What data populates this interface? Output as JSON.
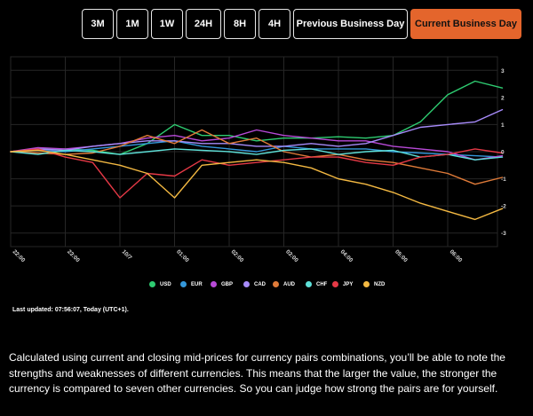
{
  "timeframe_buttons": [
    {
      "label": "3M",
      "active": false
    },
    {
      "label": "1M",
      "active": false
    },
    {
      "label": "1W",
      "active": false
    },
    {
      "label": "24H",
      "active": false
    },
    {
      "label": "8H",
      "active": false
    },
    {
      "label": "4H",
      "active": false
    },
    {
      "label": "Previous Business Day",
      "active": false
    },
    {
      "label": "Current Business Day",
      "active": true
    }
  ],
  "colors": {
    "accent": "#e4652c",
    "background": "#000000",
    "grid": "#262626"
  },
  "chart_data": {
    "type": "line",
    "title": "",
    "xlabel": "",
    "ylabel": "",
    "x_tick_labels": [
      "22:00",
      "23:00",
      "10/7",
      "01:00",
      "02:00",
      "03:00",
      "04:00",
      "05:00",
      "06:00"
    ],
    "yticks": [
      3,
      2,
      1,
      0,
      -1,
      -2,
      -3
    ],
    "ylim": [
      -3.5,
      3.5
    ],
    "x": [
      0,
      0.5,
      1,
      1.5,
      2,
      2.5,
      3,
      3.5,
      4,
      4.5,
      5,
      5.5,
      6,
      6.5,
      7,
      7.5,
      8,
      8.5,
      9
    ],
    "series": [
      {
        "name": "USD",
        "color": "#2ecc71",
        "values": [
          0,
          0.1,
          0.1,
          0.05,
          -0.1,
          0.3,
          1.0,
          0.6,
          0.6,
          0.4,
          0.5,
          0.5,
          0.55,
          0.5,
          0.6,
          1.1,
          2.1,
          2.6,
          2.35
        ]
      },
      {
        "name": "EUR",
        "color": "#3498db",
        "values": [
          0,
          0.05,
          0.0,
          0.1,
          0.2,
          0.3,
          0.4,
          0.2,
          0.1,
          0.0,
          0.2,
          0.1,
          0.1,
          0.1,
          0.0,
          -0.05,
          -0.1,
          -0.15,
          -0.2
        ]
      },
      {
        "name": "GBP",
        "color": "#b84ad8",
        "values": [
          0,
          0.15,
          0.1,
          0.2,
          0.3,
          0.5,
          0.6,
          0.4,
          0.5,
          0.8,
          0.6,
          0.5,
          0.4,
          0.4,
          0.2,
          0.1,
          0.0,
          -0.3,
          -0.15
        ]
      },
      {
        "name": "CAD",
        "color": "#a78bfa",
        "values": [
          0,
          0.1,
          0.05,
          0.2,
          0.3,
          0.4,
          0.4,
          0.3,
          0.3,
          0.2,
          0.2,
          0.3,
          0.2,
          0.3,
          0.6,
          0.9,
          1.0,
          1.1,
          1.55
        ]
      },
      {
        "name": "AUD",
        "color": "#e07b39",
        "values": [
          0,
          -0.05,
          -0.1,
          -0.05,
          0.2,
          0.6,
          0.3,
          0.8,
          0.3,
          0.5,
          0.0,
          -0.2,
          -0.1,
          -0.3,
          -0.4,
          -0.6,
          -0.8,
          -1.2,
          -0.95
        ]
      },
      {
        "name": "CHF",
        "color": "#5ee0d8",
        "values": [
          0,
          -0.1,
          0.05,
          0.0,
          -0.1,
          0.0,
          0.1,
          0.05,
          0.0,
          -0.1,
          0.05,
          0.1,
          -0.1,
          0.0,
          0.05,
          -0.2,
          -0.1,
          -0.3,
          -0.2
        ]
      },
      {
        "name": "JPY",
        "color": "#e63946",
        "values": [
          0,
          0.1,
          -0.2,
          -0.4,
          -1.7,
          -0.8,
          -0.9,
          -0.3,
          -0.5,
          -0.4,
          -0.3,
          -0.2,
          -0.2,
          -0.4,
          -0.5,
          -0.2,
          -0.1,
          0.1,
          -0.05
        ]
      },
      {
        "name": "NZD",
        "color": "#f4b942",
        "values": [
          0,
          0.05,
          -0.1,
          -0.3,
          -0.5,
          -0.8,
          -1.7,
          -0.5,
          -0.4,
          -0.3,
          -0.4,
          -0.6,
          -1.0,
          -1.2,
          -1.5,
          -1.9,
          -2.2,
          -2.5,
          -2.1
        ]
      }
    ],
    "legend_position": "bottom"
  },
  "last_updated": "Last updated: 07:56:07, Today (UTC+1).",
  "description": "Calculated using current and closing mid-prices for currency pairs combinations, you’ll be able to note the strengths and weaknesses of different currencies. This means that the larger the value, the stronger the currency is compared to seven other currencies. So you can judge how strong the pairs are for yourself."
}
